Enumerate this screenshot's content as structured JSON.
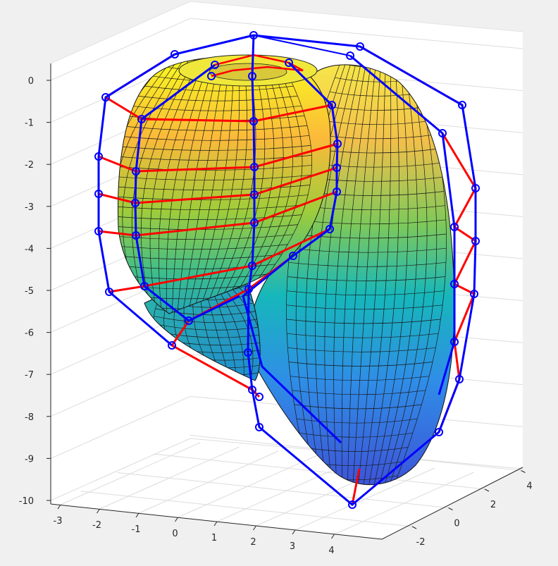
{
  "chart_data": {
    "type": "surface3d",
    "title": "",
    "xlabel": "",
    "ylabel": "",
    "zlabel": "",
    "grid": true,
    "colormap": "parula",
    "xlim": [
      -3,
      4.5
    ],
    "ylim": [
      -3,
      5
    ],
    "zlim": [
      -10.2,
      0.4
    ],
    "x_ticks": [
      "-3",
      "-2",
      "-1",
      "0",
      "1",
      "2",
      "3",
      "4"
    ],
    "y_ticks": [
      "-2",
      "0",
      "2",
      "4"
    ],
    "z_ticks": [
      "0",
      "-1",
      "-2",
      "-3",
      "-4",
      "-5",
      "-6",
      "-7",
      "-8",
      "-9",
      "-10"
    ],
    "series": [
      {
        "kind": "surface",
        "shape": "twisted-horn shell",
        "z_range": [
          -10,
          0.3
        ],
        "edge_color": "#000000"
      },
      {
        "kind": "control-net-rows",
        "color": "#ff0000"
      },
      {
        "kind": "control-net-columns",
        "color": "#0000ff",
        "marker": "circle"
      }
    ]
  }
}
